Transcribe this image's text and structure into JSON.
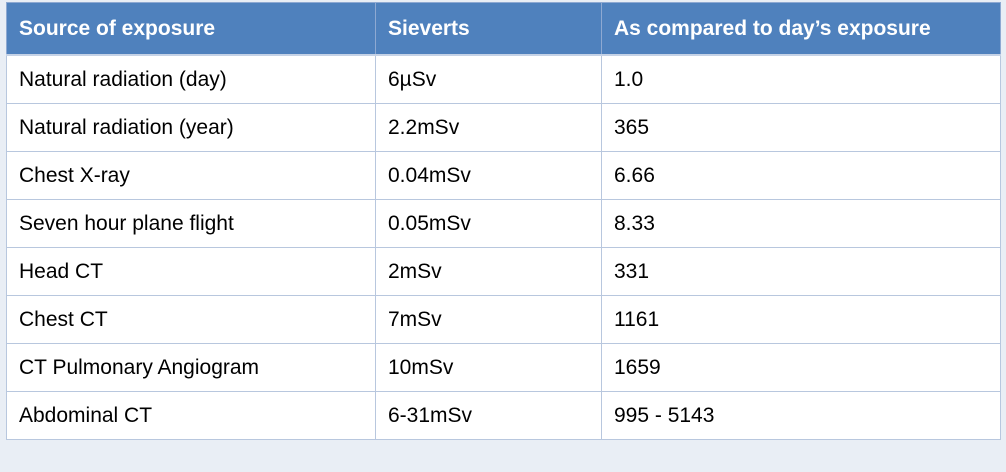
{
  "table": {
    "headers": [
      "Source of exposure",
      "Sieverts",
      "As compared to day’s exposure"
    ],
    "rows": [
      [
        "Natural radiation (day)",
        "6µSv",
        "1.0"
      ],
      [
        "Natural radiation (year)",
        "2.2mSv",
        "365"
      ],
      [
        "Chest X-ray",
        "0.04mSv",
        "6.66"
      ],
      [
        "Seven hour plane flight",
        "0.05mSv",
        "8.33"
      ],
      [
        "Head CT",
        "2mSv",
        "331"
      ],
      [
        "Chest CT",
        "7mSv",
        "1161"
      ],
      [
        "CT Pulmonary Angiogram",
        "10mSv",
        "1659"
      ],
      [
        "Abdominal CT",
        "6-31mSv",
        "995 - 5143"
      ]
    ]
  },
  "colors": {
    "header_bg": "#4f81bd",
    "header_text": "#ffffff",
    "border": "#b8c7de",
    "background": "#e9eef5"
  }
}
